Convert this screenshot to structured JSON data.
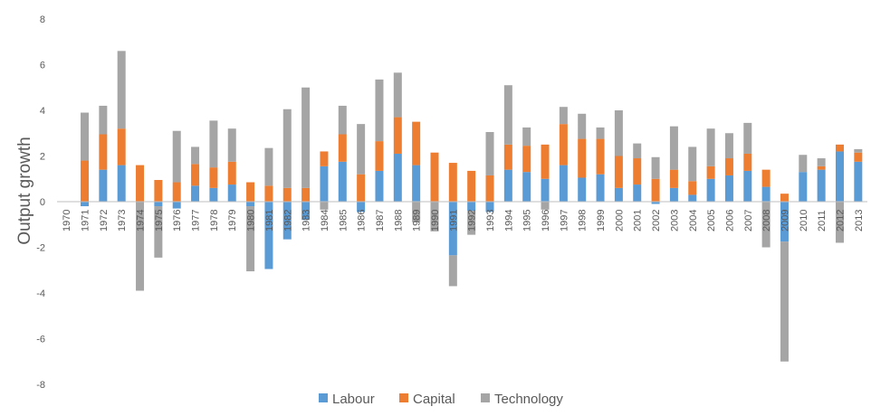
{
  "chart_data": {
    "type": "bar",
    "stacked": true,
    "title": "",
    "xlabel": "",
    "ylabel": "Output growth",
    "ylim": [
      -8,
      8
    ],
    "yticks": [
      8,
      6,
      4,
      2,
      0,
      -2,
      -4,
      -6,
      -8
    ],
    "grid": false,
    "legend_position": "bottom",
    "categories": [
      "1970",
      "1971",
      "1972",
      "1973",
      "1974",
      "1975",
      "1976",
      "1977",
      "1978",
      "1979",
      "1980",
      "1981",
      "1982",
      "1983",
      "1984",
      "1985",
      "1986",
      "1987",
      "1988",
      "1989",
      "1990",
      "1991",
      "1992",
      "1993",
      "1994",
      "1995",
      "1996",
      "1997",
      "1998",
      "1999",
      "2000",
      "2001",
      "2002",
      "2003",
      "2004",
      "2005",
      "2006",
      "2007",
      "2008",
      "2009",
      "2010",
      "2011",
      "2012",
      "2013"
    ],
    "series": [
      {
        "name": "Labour",
        "color": "#5B9BD5",
        "values": [
          0,
          -0.2,
          1.4,
          1.6,
          0,
          -0.2,
          -0.3,
          0.7,
          0.6,
          0.75,
          -0.2,
          -2.95,
          -1.65,
          -0.8,
          1.55,
          1.75,
          -0.45,
          1.35,
          2.1,
          1.6,
          0,
          -2.35,
          -0.4,
          -0.45,
          1.4,
          1.3,
          1.0,
          1.6,
          1.05,
          1.2,
          0.6,
          0.75,
          -0.1,
          0.6,
          0.3,
          1.0,
          1.15,
          1.35,
          0.65,
          -1.75,
          1.3,
          1.4,
          2.2,
          1.75
        ]
      },
      {
        "name": "Capital",
        "color": "#ED7D31",
        "values": [
          0,
          1.8,
          1.55,
          1.6,
          1.6,
          0.95,
          0.85,
          0.95,
          0.9,
          1.0,
          0.85,
          0.7,
          0.6,
          0.6,
          0.65,
          1.2,
          1.2,
          1.3,
          1.6,
          1.9,
          2.15,
          1.7,
          1.35,
          1.15,
          1.1,
          1.15,
          1.5,
          1.8,
          1.7,
          1.55,
          1.4,
          1.15,
          1.0,
          0.8,
          0.6,
          0.55,
          0.75,
          0.75,
          0.75,
          0.35,
          0,
          0.15,
          0.3,
          0.4
        ]
      },
      {
        "name": "Technology",
        "color": "#A5A5A5",
        "values": [
          0,
          2.1,
          1.25,
          3.4,
          -3.9,
          -2.25,
          2.25,
          0.75,
          2.05,
          1.45,
          -2.85,
          1.65,
          3.45,
          4.4,
          -0.35,
          1.25,
          2.2,
          2.7,
          1.95,
          -0.9,
          -1.3,
          -1.35,
          -1.05,
          1.9,
          2.6,
          0.8,
          -0.35,
          0.75,
          1.1,
          0.5,
          2.0,
          0.65,
          0.95,
          1.9,
          1.5,
          1.65,
          1.1,
          1.35,
          -2.0,
          -5.25,
          0.75,
          0.35,
          -1.8,
          0.15
        ]
      }
    ]
  }
}
